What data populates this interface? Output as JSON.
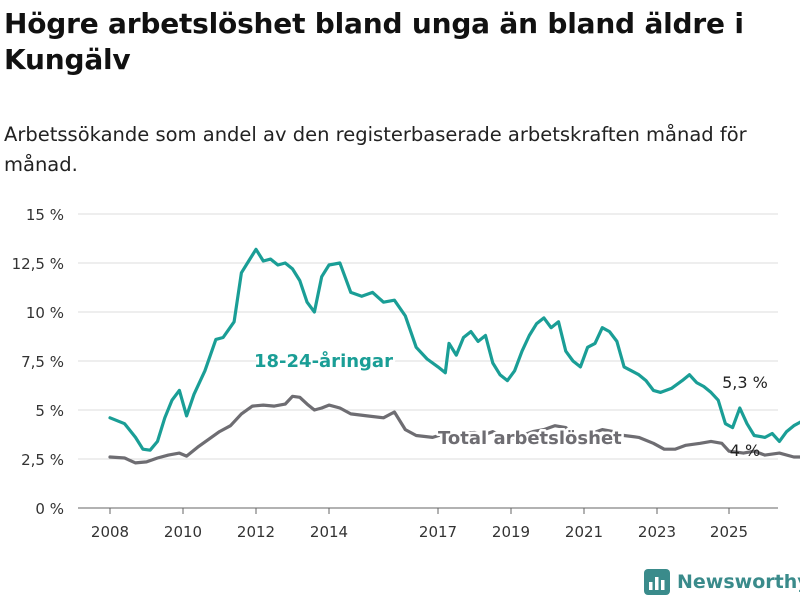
{
  "title": "Högre arbetslöshet bland unga än bland äldre i Kungälv",
  "subtitle": "Arbetssökande som andel av den registerbaserade arbetskraften månad för månad.",
  "brand": {
    "name": "Newsworthy",
    "logo_icon": "bar-chart-icon",
    "color": "#3a8b8b"
  },
  "colors": {
    "youth": "#1a9e96",
    "total": "#6e6d72",
    "grid": "#dcdcdc"
  },
  "chart_data": {
    "type": "line",
    "y_ticks": [
      "0 %",
      "2,5 %",
      "5 %",
      "7,5 %",
      "10 %",
      "12,5 %",
      "15 %"
    ],
    "x_ticks": [
      "2008",
      "2010",
      "2012",
      "2014",
      "2017",
      "2019",
      "2021",
      "2023",
      "2025"
    ],
    "ylim": [
      0,
      15
    ],
    "grid": true,
    "series": [
      {
        "name": "18-24-åringar",
        "color": "#1a9e96",
        "end_label": "5,3 %",
        "points": [
          [
            2008.0,
            4.6
          ],
          [
            2008.2,
            4.3
          ],
          [
            2008.35,
            3.6
          ],
          [
            2008.45,
            3.0
          ],
          [
            2008.55,
            2.95
          ],
          [
            2008.65,
            3.4
          ],
          [
            2008.75,
            4.6
          ],
          [
            2008.85,
            5.5
          ],
          [
            2008.95,
            6.0
          ],
          [
            2009.05,
            4.7
          ],
          [
            2009.15,
            5.8
          ],
          [
            2009.3,
            7.0
          ],
          [
            2009.45,
            8.6
          ],
          [
            2009.55,
            8.7
          ],
          [
            2009.7,
            9.5
          ],
          [
            2009.8,
            12.0
          ],
          [
            2009.9,
            12.6
          ],
          [
            2010.0,
            13.2
          ],
          [
            2010.1,
            12.6
          ],
          [
            2010.2,
            12.7
          ],
          [
            2010.3,
            12.4
          ],
          [
            2010.4,
            12.5
          ],
          [
            2010.5,
            12.2
          ],
          [
            2010.6,
            11.6
          ],
          [
            2010.7,
            10.5
          ],
          [
            2010.8,
            10.0
          ],
          [
            2010.9,
            11.8
          ],
          [
            2011.0,
            12.4
          ],
          [
            2011.1,
            12.5
          ],
          [
            2011.2,
            11.0
          ],
          [
            2011.3,
            10.8
          ],
          [
            2011.4,
            11.0
          ],
          [
            2011.5,
            10.5
          ],
          [
            2011.6,
            10.6
          ],
          [
            2011.7,
            9.8
          ],
          [
            2011.8,
            8.2
          ],
          [
            2011.9,
            7.6
          ],
          [
            2012.0,
            7.2
          ],
          [
            2012.1,
            6.9
          ],
          [
            2012.15,
            8.4
          ],
          [
            2012.25,
            7.8
          ],
          [
            2012.35,
            8.7
          ],
          [
            2012.45,
            9.0
          ],
          [
            2012.55,
            8.5
          ],
          [
            2012.65,
            8.8
          ],
          [
            2012.75,
            7.4
          ],
          [
            2012.85,
            6.8
          ],
          [
            2012.95,
            6.5
          ],
          [
            2013.05,
            7.0
          ],
          [
            2013.15,
            8.0
          ],
          [
            2013.25,
            8.8
          ],
          [
            2013.35,
            9.4
          ],
          [
            2013.45,
            9.7
          ],
          [
            2013.55,
            9.2
          ],
          [
            2013.65,
            9.5
          ],
          [
            2013.75,
            8.0
          ],
          [
            2013.85,
            7.5
          ],
          [
            2013.95,
            7.2
          ],
          [
            2014.05,
            8.2
          ],
          [
            2014.15,
            8.4
          ],
          [
            2014.25,
            9.2
          ],
          [
            2014.35,
            9.0
          ],
          [
            2014.45,
            8.5
          ],
          [
            2014.55,
            7.2
          ],
          [
            2014.65,
            7.0
          ],
          [
            2014.75,
            6.8
          ],
          [
            2014.85,
            6.5
          ],
          [
            2014.95,
            6.0
          ],
          [
            2015.05,
            5.9
          ],
          [
            2015.2,
            6.1
          ],
          [
            2015.35,
            6.5
          ],
          [
            2015.45,
            6.8
          ],
          [
            2015.55,
            6.4
          ],
          [
            2015.65,
            6.2
          ],
          [
            2015.75,
            5.9
          ],
          [
            2015.85,
            5.5
          ],
          [
            2015.95,
            4.3
          ],
          [
            2016.05,
            4.1
          ],
          [
            2016.15,
            5.1
          ],
          [
            2016.25,
            4.3
          ],
          [
            2016.35,
            3.7
          ],
          [
            2016.5,
            3.6
          ],
          [
            2016.6,
            3.8
          ],
          [
            2016.7,
            3.4
          ],
          [
            2016.8,
            3.9
          ],
          [
            2016.9,
            4.2
          ],
          [
            2017.0,
            4.4
          ],
          [
            2017.1,
            4.3
          ],
          [
            2017.2,
            3.9
          ],
          [
            2017.3,
            3.4
          ],
          [
            2017.4,
            3.5
          ],
          [
            2017.5,
            4.1
          ],
          [
            2017.6,
            3.6
          ],
          [
            2017.7,
            4.2
          ],
          [
            2017.8,
            4.2
          ],
          [
            2017.9,
            4.2
          ],
          [
            2018.0,
            4.0
          ],
          [
            2018.05,
            3.3
          ],
          [
            2018.1,
            3.6
          ],
          [
            2018.2,
            3.6
          ],
          [
            2019.4,
            3.8
          ],
          [
            2019.5,
            4.3
          ],
          [
            2019.6,
            4.7
          ],
          [
            2019.7,
            4.7
          ],
          [
            2019.8,
            4.0
          ],
          [
            2019.9,
            4.5
          ],
          [
            2020.0,
            4.6
          ],
          [
            2020.1,
            4.7
          ],
          [
            2020.2,
            4.4
          ],
          [
            2020.3,
            3.7
          ],
          [
            2020.4,
            4.0
          ],
          [
            2020.5,
            4.0
          ],
          [
            2020.6,
            4.1
          ],
          [
            2020.7,
            5.5
          ],
          [
            2020.8,
            4.9
          ],
          [
            2020.9,
            4.6
          ],
          [
            2021.0,
            4.5
          ],
          [
            2021.1,
            4.6
          ],
          [
            2021.2,
            4.9
          ],
          [
            2021.3,
            5.0
          ],
          [
            2021.4,
            5.3
          ],
          [
            2021.5,
            6.4
          ],
          [
            2021.6,
            7.0
          ],
          [
            2021.7,
            7.7
          ],
          [
            2021.8,
            8.7
          ],
          [
            2021.9,
            8.5
          ],
          [
            2022.0,
            8.3
          ],
          [
            2022.1,
            7.6
          ],
          [
            2022.2,
            7.6
          ],
          [
            2022.3,
            7.5
          ],
          [
            2022.4,
            7.0
          ],
          [
            2022.5,
            7.4
          ],
          [
            2022.6,
            7.0
          ],
          [
            2022.7,
            7.2
          ],
          [
            2022.8,
            7.2
          ],
          [
            2022.9,
            7.1
          ],
          [
            2023.0,
            6.5
          ],
          [
            2023.1,
            6.0
          ],
          [
            2023.2,
            5.6
          ],
          [
            2023.3,
            5.0
          ],
          [
            2023.4,
            5.4
          ],
          [
            2023.5,
            5.1
          ],
          [
            2023.6,
            4.8
          ],
          [
            2023.7,
            4.7
          ],
          [
            2023.8,
            5.2
          ],
          [
            2023.9,
            5.8
          ],
          [
            2024.0,
            6.0
          ],
          [
            2024.1,
            5.6
          ],
          [
            2024.2,
            5.5
          ],
          [
            2024.3,
            5.0
          ],
          [
            2024.4,
            4.9
          ],
          [
            2024.5,
            4.7
          ],
          [
            2024.6,
            4.4
          ],
          [
            2024.7,
            4.2
          ],
          [
            2024.8,
            4.3
          ],
          [
            2024.9,
            4.7
          ],
          [
            2025.0,
            5.5
          ],
          [
            2025.1,
            5.7
          ],
          [
            2025.2,
            5.3
          ],
          [
            2025.3,
            4.7
          ],
          [
            2025.4,
            5.1
          ],
          [
            2025.5,
            5.3
          ],
          [
            2025.55,
            4.5
          ],
          [
            2025.6,
            4.6
          ],
          [
            2025.7,
            5.0
          ],
          [
            2025.8,
            5.7
          ],
          [
            2025.9,
            4.6
          ],
          [
            2026.0,
            4.2
          ],
          [
            2026.1,
            4.2
          ],
          [
            2026.2,
            5.3
          ],
          [
            2026.3,
            5.5
          ],
          [
            2026.4,
            5.8
          ],
          [
            2026.5,
            5.4
          ],
          [
            2026.6,
            4.7
          ],
          [
            2026.7,
            4.5
          ],
          [
            2026.8,
            4.6
          ],
          [
            2026.9,
            4.8
          ],
          [
            2027.0,
            4.3
          ],
          [
            2027.1,
            4.2
          ],
          [
            2027.2,
            4.8
          ],
          [
            2027.3,
            5.3
          ]
        ]
      },
      {
        "name": "Total arbetslöshet",
        "color": "#6e6d72",
        "end_label": "4 %",
        "points": [
          [
            2008.0,
            2.6
          ],
          [
            2008.2,
            2.55
          ],
          [
            2008.35,
            2.3
          ],
          [
            2008.5,
            2.35
          ],
          [
            2008.65,
            2.55
          ],
          [
            2008.8,
            2.7
          ],
          [
            2008.95,
            2.8
          ],
          [
            2009.05,
            2.65
          ],
          [
            2009.2,
            3.1
          ],
          [
            2009.35,
            3.5
          ],
          [
            2009.5,
            3.9
          ],
          [
            2009.65,
            4.2
          ],
          [
            2009.8,
            4.8
          ],
          [
            2009.95,
            5.2
          ],
          [
            2010.1,
            5.25
          ],
          [
            2010.25,
            5.2
          ],
          [
            2010.4,
            5.3
          ],
          [
            2010.5,
            5.7
          ],
          [
            2010.6,
            5.65
          ],
          [
            2010.7,
            5.3
          ],
          [
            2010.8,
            5.0
          ],
          [
            2010.9,
            5.1
          ],
          [
            2011.0,
            5.25
          ],
          [
            2011.1,
            5.1
          ],
          [
            2011.2,
            4.8
          ],
          [
            2011.35,
            4.7
          ],
          [
            2011.5,
            4.6
          ],
          [
            2011.6,
            4.9
          ],
          [
            2011.7,
            4.0
          ],
          [
            2011.8,
            3.7
          ],
          [
            2011.95,
            3.6
          ],
          [
            2012.1,
            3.8
          ],
          [
            2012.2,
            3.7
          ],
          [
            2012.35,
            3.8
          ],
          [
            2012.5,
            3.85
          ],
          [
            2012.6,
            3.7
          ],
          [
            2012.75,
            3.9
          ],
          [
            2012.9,
            3.6
          ],
          [
            2013.0,
            3.55
          ],
          [
            2013.15,
            3.7
          ],
          [
            2013.3,
            3.9
          ],
          [
            2013.45,
            4.0
          ],
          [
            2013.6,
            4.2
          ],
          [
            2013.75,
            4.1
          ],
          [
            2013.85,
            3.8
          ],
          [
            2013.95,
            3.6
          ],
          [
            2014.1,
            3.8
          ],
          [
            2014.25,
            4.0
          ],
          [
            2014.4,
            3.9
          ],
          [
            2014.55,
            3.7
          ],
          [
            2014.75,
            3.6
          ],
          [
            2014.95,
            3.3
          ],
          [
            2015.1,
            3.0
          ],
          [
            2015.25,
            3.0
          ],
          [
            2015.4,
            3.2
          ],
          [
            2015.6,
            3.3
          ],
          [
            2015.75,
            3.4
          ],
          [
            2015.9,
            3.3
          ],
          [
            2016.0,
            2.9
          ],
          [
            2016.2,
            2.8
          ],
          [
            2016.35,
            2.9
          ],
          [
            2016.5,
            2.7
          ],
          [
            2016.7,
            2.8
          ],
          [
            2016.9,
            2.6
          ],
          [
            2017.05,
            2.6
          ],
          [
            2017.2,
            2.7
          ],
          [
            2017.4,
            2.8
          ],
          [
            2017.6,
            2.9
          ],
          [
            2017.8,
            2.8
          ],
          [
            2018.0,
            2.8
          ],
          [
            2018.2,
            2.85
          ],
          [
            2018.4,
            2.7
          ],
          [
            2018.6,
            2.8
          ],
          [
            2018.8,
            2.9
          ],
          [
            2019.0,
            2.9
          ],
          [
            2019.2,
            2.8
          ],
          [
            2019.35,
            3.0
          ]
        ]
      },
      {
        "name": "",
        "color": "#6e6d72",
        "end_label": "",
        "points": [
          [
            2021.2,
            4.0
          ],
          [
            2021.3,
            4.6
          ],
          [
            2021.4,
            5.2
          ],
          [
            2021.5,
            5.4
          ],
          [
            2021.6,
            5.5
          ],
          [
            2021.7,
            5.2
          ],
          [
            2021.8,
            5.2
          ],
          [
            2021.9,
            5.0
          ],
          [
            2022.0,
            5.0
          ],
          [
            2022.1,
            4.9
          ],
          [
            2022.2,
            4.8
          ],
          [
            2022.3,
            4.7
          ],
          [
            2022.4,
            4.6
          ],
          [
            2022.5,
            4.4
          ],
          [
            2022.6,
            4.5
          ],
          [
            2022.7,
            4.4
          ],
          [
            2022.8,
            4.4
          ],
          [
            2022.9,
            4.2
          ],
          [
            2023.0,
            4.0
          ],
          [
            2023.1,
            3.8
          ]
        ]
      },
      {
        "name": "",
        "color": "#6e6d72",
        "end_label": "",
        "points": [
          [
            2023.55,
            3.6
          ],
          [
            2023.7,
            3.7
          ],
          [
            2023.85,
            3.7
          ],
          [
            2024.0,
            3.6
          ],
          [
            2024.15,
            3.7
          ],
          [
            2024.3,
            3.6
          ],
          [
            2024.45,
            3.5
          ],
          [
            2024.6,
            3.6
          ],
          [
            2024.75,
            3.6
          ],
          [
            2024.9,
            3.5
          ],
          [
            2025.05,
            3.5
          ],
          [
            2025.2,
            3.6
          ],
          [
            2025.35,
            3.6
          ],
          [
            2025.5,
            3.5
          ],
          [
            2025.65,
            3.6
          ],
          [
            2025.8,
            3.8
          ],
          [
            2025.95,
            3.6
          ],
          [
            2026.1,
            3.7
          ],
          [
            2026.25,
            3.6
          ],
          [
            2026.4,
            3.6
          ],
          [
            2026.55,
            3.7
          ],
          [
            2026.7,
            3.8
          ],
          [
            2026.85,
            3.7
          ],
          [
            2027.0,
            3.8
          ],
          [
            2027.15,
            3.8
          ],
          [
            2027.3,
            4.0
          ]
        ]
      }
    ]
  }
}
